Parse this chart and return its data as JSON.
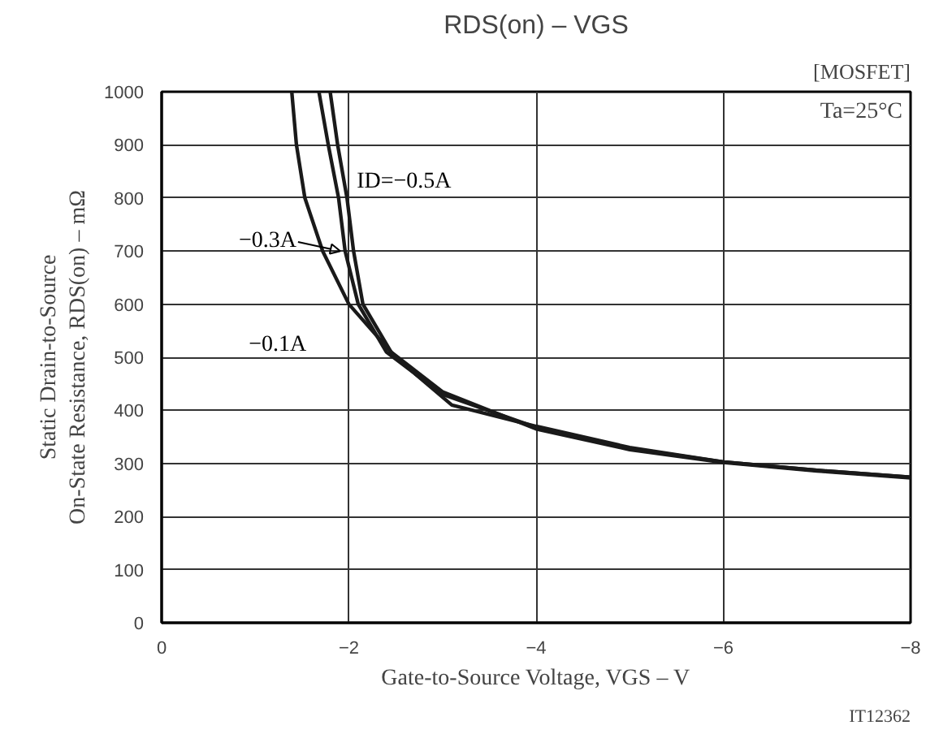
{
  "chart_data": {
    "type": "line",
    "title": "RDS(on) – VGS",
    "xlabel": "Gate-to-Source Voltage, VGS – V",
    "ylabel": "Static Drain-to-Source\nOn-State Resistance, RDS(on) – mΩ",
    "xlim": [
      0,
      -8
    ],
    "xticks": [
      0,
      {
        "value": -2,
        "label": "−2"
      },
      {
        "value": -4,
        "label": "−4"
      },
      {
        "value": -6,
        "label": "−6"
      },
      {
        "value": -8,
        "label": "−8"
      }
    ],
    "ylim": [
      0,
      1000
    ],
    "yticks": [
      0,
      100,
      200,
      300,
      400,
      500,
      600,
      700,
      800,
      900,
      1000
    ],
    "grid": true,
    "line_style": "solid",
    "marker": "none",
    "series": [
      {
        "name": "ID=−0.5A",
        "color": "#1a1a1a",
        "x": [
          -1.8,
          -1.88,
          -1.98,
          -2.05,
          -2.15,
          -2.45,
          -3.0,
          -4,
          -5,
          -6,
          -7,
          -8
        ],
        "values": [
          1000,
          900,
          800,
          700,
          600,
          510,
          435,
          365,
          326,
          302,
          286,
          273
        ]
      },
      {
        "name": "−0.3A",
        "color": "#1a1a1a",
        "x": [
          -1.68,
          -1.78,
          -1.89,
          -1.96,
          -2.1,
          -2.4,
          -3.0,
          -4,
          -5,
          -6,
          -7,
          -8
        ],
        "values": [
          1000,
          900,
          800,
          700,
          600,
          510,
          430,
          368,
          328,
          303,
          287,
          274
        ]
      },
      {
        "name": "−0.1A",
        "color": "#1a1a1a",
        "x": [
          -1.39,
          -1.44,
          -1.53,
          -1.72,
          -2.0,
          -2.5,
          -3.1,
          -4,
          -5,
          -6,
          -7,
          -8
        ],
        "values": [
          1000,
          900,
          800,
          700,
          600,
          500,
          410,
          370,
          330,
          303,
          287,
          274
        ]
      }
    ],
    "annotations": [
      "[MOSFET]",
      "Ta=25°C",
      "IT12362"
    ]
  }
}
